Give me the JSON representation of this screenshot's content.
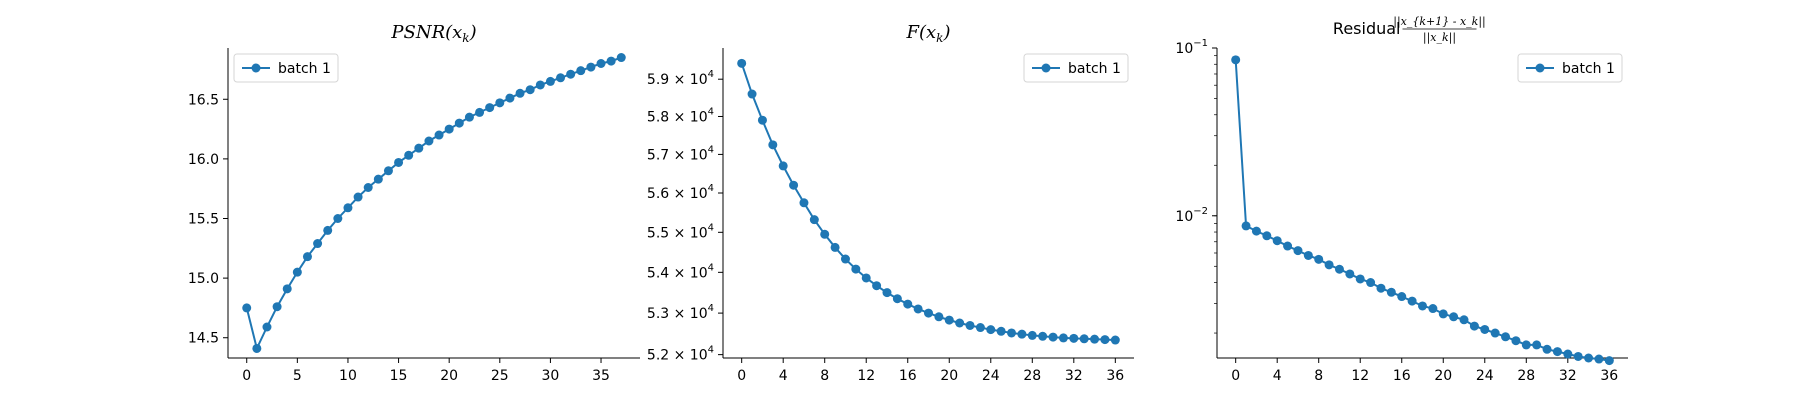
{
  "chart_data": [
    {
      "type": "line",
      "title": "PSNR(x_k)",
      "title_parts": [
        "PSNR(x",
        "k",
        ")"
      ],
      "xlabel": "",
      "ylabel": "",
      "x_ticks": [
        0,
        5,
        10,
        15,
        20,
        25,
        30,
        35
      ],
      "y_ticks": [
        14.5,
        15.0,
        15.5,
        16.0,
        16.5
      ],
      "y_tick_labels": [
        "14.5",
        "15.0",
        "15.5",
        "16.0",
        "16.5"
      ],
      "xlim": [
        -1.85,
        38.85
      ],
      "ylim": [
        14.33,
        16.93
      ],
      "y_scale": "linear",
      "legend_position": "top-left",
      "grid": false,
      "series": [
        {
          "name": "batch 1",
          "color": "#1f77b4",
          "x": [
            0,
            1,
            2,
            3,
            4,
            5,
            6,
            7,
            8,
            9,
            10,
            11,
            12,
            13,
            14,
            15,
            16,
            17,
            18,
            19,
            20,
            21,
            22,
            23,
            24,
            25,
            26,
            27,
            28,
            29,
            30,
            31,
            32,
            33,
            34,
            35,
            36,
            37
          ],
          "values": [
            14.75,
            14.41,
            14.59,
            14.76,
            14.91,
            15.05,
            15.18,
            15.29,
            15.4,
            15.5,
            15.59,
            15.68,
            15.76,
            15.83,
            15.9,
            15.97,
            16.03,
            16.09,
            16.15,
            16.2,
            16.25,
            16.3,
            16.35,
            16.39,
            16.43,
            16.47,
            16.51,
            16.55,
            16.58,
            16.62,
            16.65,
            16.68,
            16.71,
            16.74,
            16.77,
            16.8,
            16.82,
            16.85
          ]
        }
      ]
    },
    {
      "type": "line",
      "title": "F(x_k)",
      "title_parts": [
        "F(x",
        "k",
        ")"
      ],
      "xlabel": "",
      "ylabel": "",
      "x_ticks": [
        0,
        4,
        8,
        12,
        16,
        20,
        24,
        28,
        32,
        36
      ],
      "y_ticks": [
        52000,
        53000,
        54000,
        55000,
        56000,
        57000,
        58000,
        59000
      ],
      "y_tick_mantissas": [
        "5.2",
        "5.3",
        "5.4",
        "5.5",
        "5.6",
        "5.7",
        "5.8",
        "5.9"
      ],
      "y_tick_base": "10",
      "y_tick_exponent": "4",
      "xlim": [
        -1.8,
        37.8
      ],
      "ylim": [
        51920,
        59850
      ],
      "y_scale": "log",
      "legend_position": "top-right",
      "grid": false,
      "series": [
        {
          "name": "batch 1",
          "color": "#1f77b4",
          "x": [
            0,
            1,
            2,
            3,
            4,
            5,
            6,
            7,
            8,
            9,
            10,
            11,
            12,
            13,
            14,
            15,
            16,
            17,
            18,
            19,
            20,
            21,
            22,
            23,
            24,
            25,
            26,
            27,
            28,
            29,
            30,
            31,
            32,
            33,
            34,
            35,
            36
          ],
          "values": [
            59430,
            58600,
            57900,
            57250,
            56700,
            56200,
            55750,
            55320,
            54950,
            54620,
            54330,
            54080,
            53860,
            53670,
            53500,
            53350,
            53220,
            53100,
            53000,
            52910,
            52830,
            52760,
            52700,
            52650,
            52600,
            52560,
            52520,
            52490,
            52460,
            52440,
            52420,
            52400,
            52390,
            52380,
            52370,
            52360,
            52350
          ]
        }
      ]
    },
    {
      "type": "line",
      "title": "Residual ||x_{k+1} - x_k|| / ||x_k||",
      "title_word": "Residual",
      "title_numerator": "||x_{k+1} - x_k||",
      "title_denominator": "||x_k||",
      "xlabel": "",
      "ylabel": "",
      "x_ticks": [
        0,
        4,
        8,
        12,
        16,
        20,
        24,
        28,
        32,
        36
      ],
      "y_ticks": [
        0.01,
        0.1
      ],
      "y_tick_base": "10",
      "y_tick_exponents": [
        "−2",
        "−1"
      ],
      "xlim": [
        -1.8,
        37.8
      ],
      "ylim": [
        0.00142,
        0.1
      ],
      "y_scale": "log",
      "legend_position": "top-right",
      "grid": false,
      "series": [
        {
          "name": "batch 1",
          "color": "#1f77b4",
          "x": [
            0,
            1,
            2,
            3,
            4,
            5,
            6,
            7,
            8,
            9,
            10,
            11,
            12,
            13,
            14,
            15,
            16,
            17,
            18,
            19,
            20,
            21,
            22,
            23,
            24,
            25,
            26,
            27,
            28,
            29,
            30,
            31,
            32,
            33,
            34,
            35,
            36
          ],
          "values": [
            0.085,
            0.0087,
            0.0081,
            0.0076,
            0.0071,
            0.0066,
            0.0062,
            0.0058,
            0.0055,
            0.0051,
            0.0048,
            0.0045,
            0.0042,
            0.004,
            0.0037,
            0.0035,
            0.0033,
            0.0031,
            0.0029,
            0.0028,
            0.0026,
            0.0025,
            0.0024,
            0.0022,
            0.0021,
            0.002,
            0.0019,
            0.0018,
            0.0017,
            0.0017,
            0.0016,
            0.00155,
            0.0015,
            0.00145,
            0.00142,
            0.0014,
            0.00137
          ]
        }
      ]
    }
  ]
}
